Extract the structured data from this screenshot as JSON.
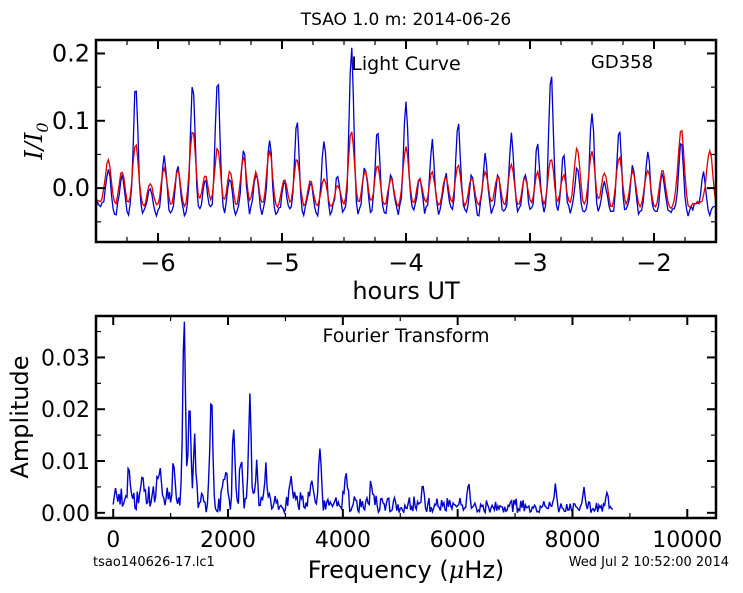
{
  "page": {
    "title": "TSAO 1.0 m:  2014-06-26",
    "footer_left": "tsao140626-17.lc1",
    "footer_right": "Wed Jul  2 10:52:00 2014"
  },
  "chart_data": [
    {
      "type": "line",
      "title": "",
      "annotation": "Light Curve",
      "star_label": "GD358",
      "xlabel": "hours UT",
      "ylabel_parts": {
        "a": "I",
        "b": "/",
        "c": "I",
        "sub": "0"
      },
      "xlim": [
        -6.5,
        -1.5
      ],
      "ylim": [
        -0.08,
        0.22
      ],
      "x_ticks": [
        -6,
        -5,
        -4,
        -3,
        -2
      ],
      "x_tick_labels": [
        "−6",
        "−5",
        "−4",
        "−3",
        "−2"
      ],
      "y_ticks": [
        0.0,
        0.1,
        0.2
      ],
      "y_tick_labels": [
        "0.0",
        "0.1",
        "0.2"
      ],
      "grid": false,
      "series": [
        {
          "color": "#0000cc",
          "sample_step_hours": 0.0125,
          "baseline": -0.025,
          "noise": 0.006,
          "pulses": [
            [
              -6.4,
              0.06
            ],
            [
              -6.29,
              0.05
            ],
            [
              -6.18,
              0.185
            ],
            [
              -6.06,
              0.03
            ],
            [
              -5.95,
              0.08
            ],
            [
              -5.84,
              0.06
            ],
            [
              -5.72,
              0.19
            ],
            [
              -5.62,
              0.045
            ],
            [
              -5.52,
              0.195
            ],
            [
              -5.42,
              0.05
            ],
            [
              -5.31,
              0.09
            ],
            [
              -5.21,
              0.055
            ],
            [
              -5.1,
              0.1
            ],
            [
              -4.98,
              0.035
            ],
            [
              -4.88,
              0.135
            ],
            [
              -4.77,
              0.04
            ],
            [
              -4.66,
              0.1
            ],
            [
              -4.55,
              0.05
            ],
            [
              -4.44,
              0.24
            ],
            [
              -4.33,
              0.06
            ],
            [
              -4.23,
              0.12
            ],
            [
              -4.12,
              0.055
            ],
            [
              -4.0,
              0.155
            ],
            [
              -3.89,
              0.04
            ],
            [
              -3.79,
              0.1
            ],
            [
              -3.68,
              0.05
            ],
            [
              -3.58,
              0.13
            ],
            [
              -3.47,
              0.045
            ],
            [
              -3.36,
              0.08
            ],
            [
              -3.26,
              0.05
            ],
            [
              -3.15,
              0.11
            ],
            [
              -3.04,
              0.05
            ],
            [
              -2.94,
              0.1
            ],
            [
              -2.83,
              0.2
            ],
            [
              -2.73,
              0.08
            ],
            [
              -2.62,
              0.06
            ],
            [
              -2.5,
              0.14
            ],
            [
              -2.4,
              0.045
            ],
            [
              -2.28,
              0.115
            ],
            [
              -2.17,
              0.06
            ],
            [
              -2.05,
              0.085
            ],
            [
              -1.93,
              0.05
            ],
            [
              -1.78,
              0.1
            ],
            [
              -1.6,
              0.05
            ]
          ]
        },
        {
          "color": "#dd0000",
          "sample_step_hours": 0.0125,
          "baseline": -0.02,
          "noise": 0.002,
          "pulses": [
            [
              -6.4,
              0.065
            ],
            [
              -6.29,
              0.05
            ],
            [
              -6.18,
              0.09
            ],
            [
              -6.06,
              0.03
            ],
            [
              -5.95,
              0.055
            ],
            [
              -5.84,
              0.05
            ],
            [
              -5.72,
              0.11
            ],
            [
              -5.62,
              0.045
            ],
            [
              -5.52,
              0.085
            ],
            [
              -5.42,
              0.05
            ],
            [
              -5.31,
              0.07
            ],
            [
              -5.21,
              0.05
            ],
            [
              -5.1,
              0.08
            ],
            [
              -4.98,
              0.035
            ],
            [
              -4.88,
              0.07
            ],
            [
              -4.77,
              0.035
            ],
            [
              -4.66,
              0.04
            ],
            [
              -4.55,
              0.03
            ],
            [
              -4.44,
              0.11
            ],
            [
              -4.33,
              0.05
            ],
            [
              -4.23,
              0.06
            ],
            [
              -4.12,
              0.04
            ],
            [
              -4.0,
              0.085
            ],
            [
              -3.89,
              0.04
            ],
            [
              -3.79,
              0.05
            ],
            [
              -3.68,
              0.04
            ],
            [
              -3.58,
              0.06
            ],
            [
              -3.47,
              0.04
            ],
            [
              -3.36,
              0.05
            ],
            [
              -3.26,
              0.045
            ],
            [
              -3.15,
              0.06
            ],
            [
              -3.04,
              0.04
            ],
            [
              -2.94,
              0.05
            ],
            [
              -2.83,
              0.07
            ],
            [
              -2.73,
              0.045
            ],
            [
              -2.62,
              0.085
            ],
            [
              -2.5,
              0.08
            ],
            [
              -2.4,
              0.05
            ],
            [
              -2.28,
              0.07
            ],
            [
              -2.17,
              0.05
            ],
            [
              -2.05,
              0.05
            ],
            [
              -1.93,
              0.05
            ],
            [
              -1.78,
              0.11
            ],
            [
              -1.55,
              0.08
            ]
          ]
        }
      ]
    },
    {
      "type": "line",
      "title": "",
      "annotation": "Fourier Transform",
      "xlabel_parts": {
        "a": "Frequency (",
        "mu": "μ",
        "b": "Hz)"
      },
      "ylabel": "Amplitude",
      "xlim": [
        -300,
        10500
      ],
      "ylim": [
        -0.001,
        0.038
      ],
      "x_ticks": [
        0,
        2000,
        4000,
        6000,
        8000,
        10000
      ],
      "x_tick_labels": [
        "0",
        "2000",
        "4000",
        "6000",
        "8000",
        "10000"
      ],
      "y_ticks": [
        0.0,
        0.01,
        0.02,
        0.03
      ],
      "y_tick_labels": [
        "0.00",
        "0.01",
        "0.02",
        "0.03"
      ],
      "grid": false,
      "series": [
        {
          "color": "#0000cc",
          "freq_range": [
            0,
            8700
          ],
          "freq_step": 20,
          "peaks": [
            [
              1235,
              0.037
            ],
            [
              1330,
              0.0215
            ],
            [
              1420,
              0.011
            ],
            [
              1710,
              0.0205
            ],
            [
              2100,
              0.0145
            ],
            [
              2230,
              0.009
            ],
            [
              2380,
              0.0215
            ],
            [
              2500,
              0.007
            ],
            [
              2650,
              0.006
            ],
            [
              3600,
              0.0105
            ],
            [
              3450,
              0.006
            ],
            [
              4050,
              0.0065
            ],
            [
              4500,
              0.005
            ],
            [
              280,
              0.0065
            ],
            [
              520,
              0.006
            ],
            [
              800,
              0.0065
            ],
            [
              1050,
              0.0075
            ],
            [
              1950,
              0.007
            ],
            [
              3100,
              0.0065
            ],
            [
              5400,
              0.004
            ],
            [
              6200,
              0.0035
            ],
            [
              7700,
              0.0035
            ],
            [
              8200,
              0.0035
            ],
            [
              8600,
              0.003
            ]
          ]
        }
      ]
    }
  ]
}
